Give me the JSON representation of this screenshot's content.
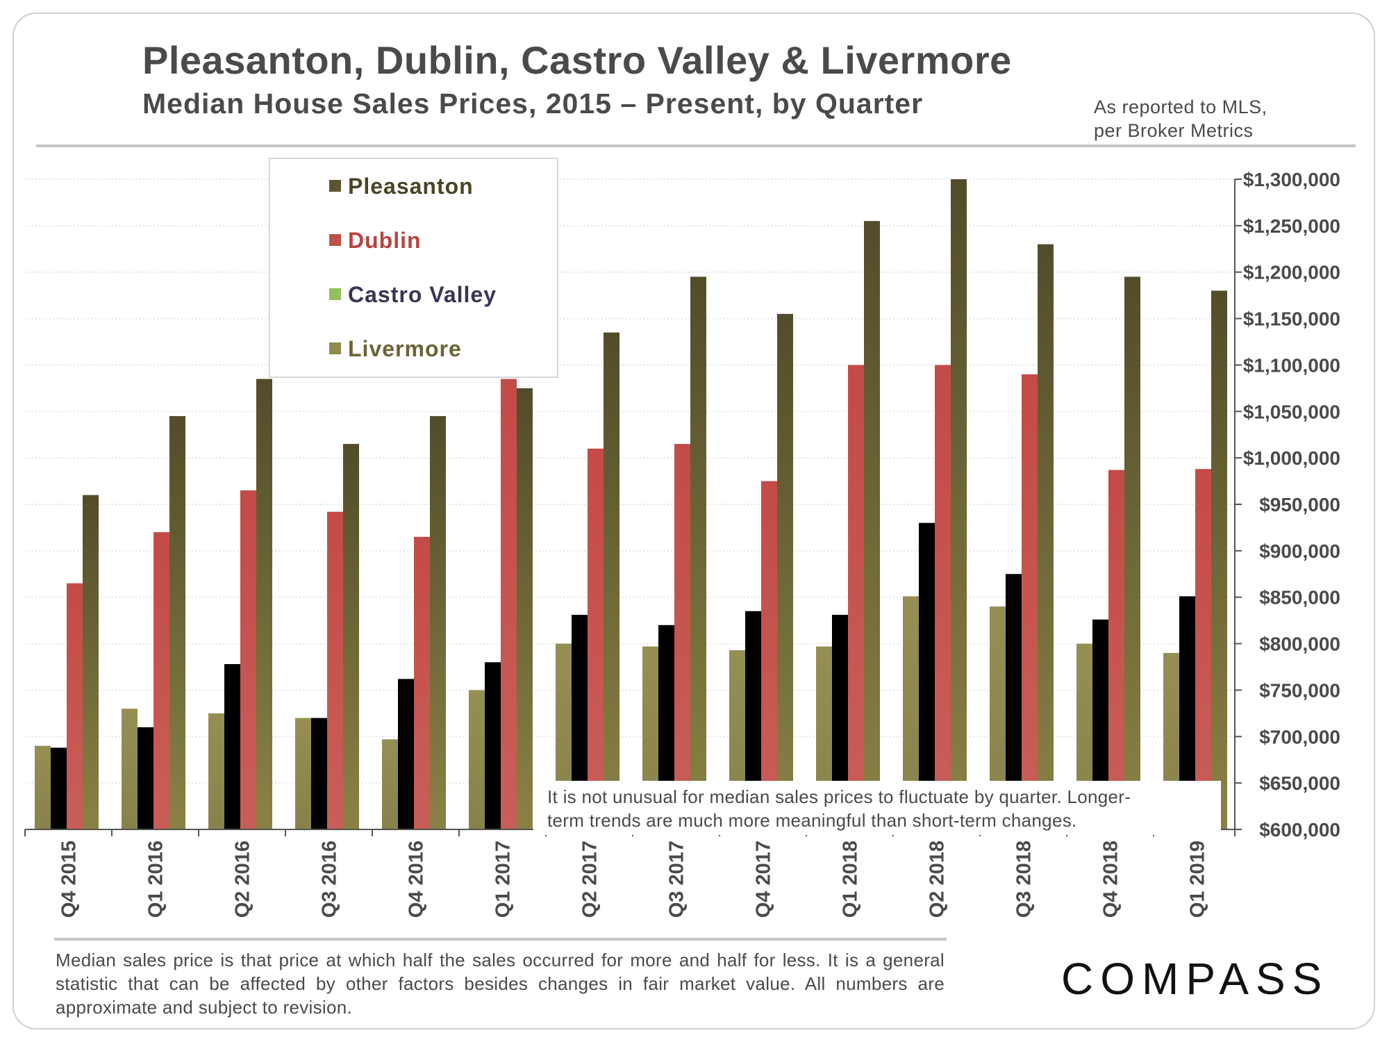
{
  "header": {
    "title": "Pleasanton, Dublin, Castro Valley & Livermore",
    "subtitle": "Median House Sales Prices, 2015 – Present, by Quarter",
    "source_line1": "As reported to MLS,",
    "source_line2": "per Broker Metrics"
  },
  "footnote": "Median sales price is that price at which half the sales occurred for more and half for less. It is a general statistic that can be affected by other factors besides changes in fair market value. All numbers are approximate and subject to revision.",
  "logo_text": "COMPASS",
  "chart_data": {
    "type": "bar",
    "categories": [
      "Q4 2015",
      "Q1 2016",
      "Q2 2016",
      "Q3 2016",
      "Q4 2016",
      "Q1 2017",
      "Q2 2017",
      "Q3 2017",
      "Q4 2017",
      "Q1 2018",
      "Q2 2018",
      "Q3 2018",
      "Q4 2018",
      "Q1 2019"
    ],
    "series": [
      {
        "name": "Livermore",
        "color": "#8f8a4e",
        "values": [
          690000,
          730000,
          725000,
          720000,
          697000,
          750000,
          800000,
          797000,
          793000,
          797000,
          851000,
          840000,
          800000,
          790000
        ]
      },
      {
        "name": "Castro Valley",
        "color": "#92c05a",
        "values": [
          688000,
          710000,
          778000,
          720000,
          762000,
          780000,
          831000,
          820000,
          835000,
          831000,
          930000,
          875000,
          826000,
          851000
        ]
      },
      {
        "name": "Dublin",
        "color": "#c0504d",
        "values": [
          865000,
          920000,
          965000,
          942000,
          915000,
          1085000,
          1010000,
          1015000,
          975000,
          1100000,
          1100000,
          1090000,
          987000,
          988000
        ]
      },
      {
        "name": "Pleasanton",
        "color": "#5b5530",
        "values": [
          960000,
          1045000,
          1085000,
          1015000,
          1045000,
          1075000,
          1135000,
          1195000,
          1155000,
          1255000,
          1300000,
          1230000,
          1195000,
          1180000
        ]
      }
    ],
    "legend_order": [
      "Pleasanton",
      "Dublin",
      "Castro Valley",
      "Livermore"
    ],
    "legend_text_colors": {
      "Pleasanton": "#4a4526",
      "Dublin": "#b8423f",
      "Castro Valley": "#3b3355",
      "Livermore": "#6b6536"
    },
    "legend_placement": "top-left",
    "y_axis_side": "right",
    "ylim": [
      600000,
      1300000
    ],
    "yticks": [
      600000,
      650000,
      700000,
      750000,
      800000,
      850000,
      900000,
      950000,
      1000000,
      1050000,
      1100000,
      1150000,
      1200000,
      1250000,
      1300000
    ],
    "ytick_labels": [
      "$600,000",
      "$650,000",
      "$700,000",
      "$750,000",
      "$800,000",
      "$850,000",
      "$900,000",
      "$950,000",
      "$1,000,000",
      "$1,050,000",
      "$1,100,000",
      "$1,150,000",
      "$1,200,000",
      "$1,250,000",
      "$1,300,000"
    ],
    "gridlines": true,
    "annotation_line1": "It is not unusual for median sales prices to fluctuate by quarter. Longer-",
    "annotation_line2": "term trends are much more meaningful than short-term changes."
  }
}
